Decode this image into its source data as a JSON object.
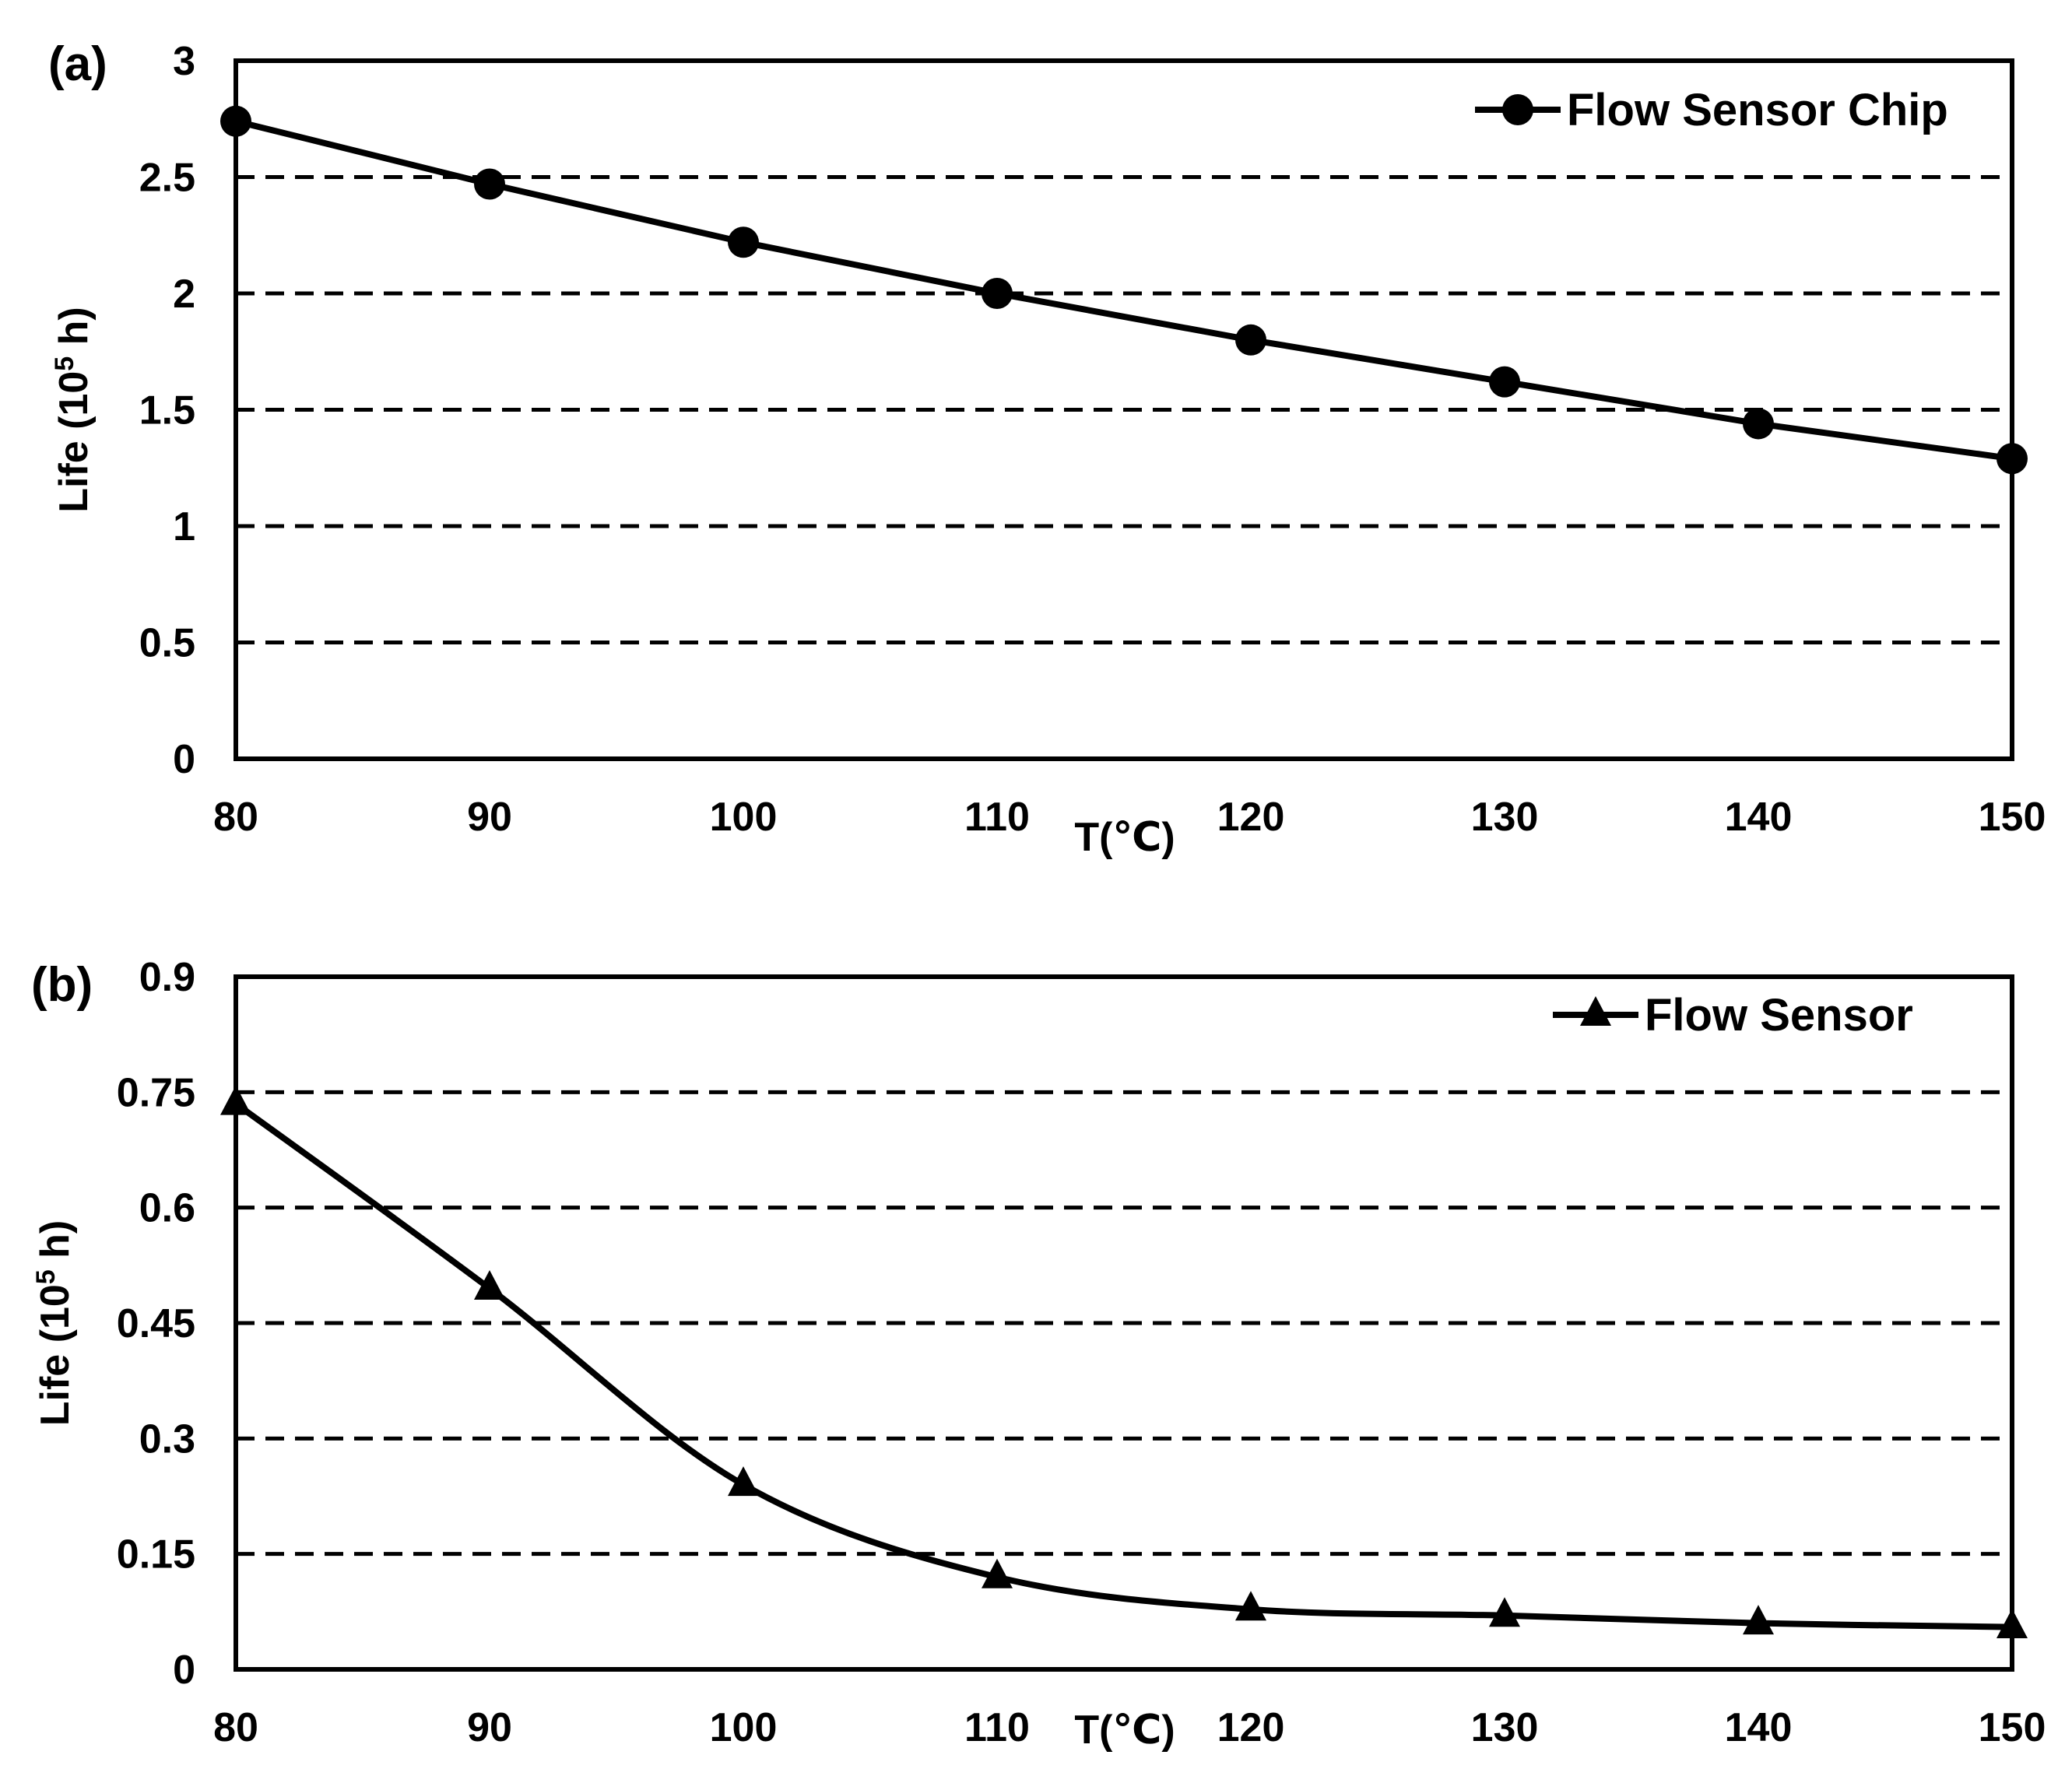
{
  "chart_data": [
    {
      "type": "line",
      "panel_label": "(a)",
      "title": "",
      "xlabel": "T(℃)",
      "ylabel_prefix": "Life (10",
      "ylabel_sup": "5",
      "ylabel_suffix": " h)",
      "x": [
        80,
        90,
        100,
        110,
        120,
        130,
        140,
        150
      ],
      "x_tick_labels": [
        "80",
        "90",
        "100",
        "110",
        "120",
        "130",
        "140",
        "150"
      ],
      "y_ticks": [
        0,
        0.5,
        1,
        1.5,
        2,
        2.5,
        3
      ],
      "y_tick_labels": [
        "0",
        "0.5",
        "1",
        "1.5",
        "2",
        "2.5",
        "3"
      ],
      "xlim": [
        80,
        150
      ],
      "ylim": [
        0,
        3
      ],
      "grid": "horizontal-dashed",
      "legend_position": "top-right",
      "smooth": false,
      "series": [
        {
          "name": "Flow Sensor Chip",
          "marker": "circle",
          "color": "#000000",
          "values": [
            2.74,
            2.47,
            2.22,
            2.0,
            1.8,
            1.62,
            1.44,
            1.29
          ]
        }
      ]
    },
    {
      "type": "line",
      "panel_label": "(b)",
      "title": "",
      "xlabel": "T(℃)",
      "ylabel_prefix": "Life (10",
      "ylabel_sup": "5",
      "ylabel_suffix": " h)",
      "x": [
        80,
        90,
        100,
        110,
        120,
        130,
        140,
        150
      ],
      "x_tick_labels": [
        "80",
        "90",
        "100",
        "110",
        "120",
        "130",
        "140",
        "150"
      ],
      "y_ticks": [
        0,
        0.15,
        0.3,
        0.45,
        0.6,
        0.75,
        0.9
      ],
      "y_tick_labels": [
        "0",
        "0.15",
        "0.3",
        "0.45",
        "0.6",
        "0.75",
        "0.9"
      ],
      "xlim": [
        80,
        150
      ],
      "ylim": [
        0,
        0.9
      ],
      "grid": "horizontal-dashed",
      "legend_position": "top-right",
      "smooth": true,
      "series": [
        {
          "name": "Flow Sensor",
          "marker": "triangle",
          "color": "#000000",
          "values": [
            0.735,
            0.495,
            0.24,
            0.12,
            0.078,
            0.07,
            0.06,
            0.055
          ]
        }
      ]
    }
  ]
}
